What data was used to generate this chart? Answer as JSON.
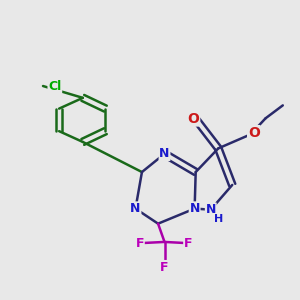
{
  "bg_color": "#e8e8e8",
  "bond_color_dark": "#2a2a6a",
  "bond_color_green": "#1a6a1a",
  "bond_color_purple": "#aa00aa",
  "bond_width": 1.8,
  "atom_colors": {
    "N": "#1a1acc",
    "O": "#cc1a1a",
    "F": "#bb00bb",
    "Cl": "#00aa00"
  },
  "font_size_N": 9,
  "font_size_O": 10,
  "font_size_F": 9,
  "font_size_Cl": 9
}
